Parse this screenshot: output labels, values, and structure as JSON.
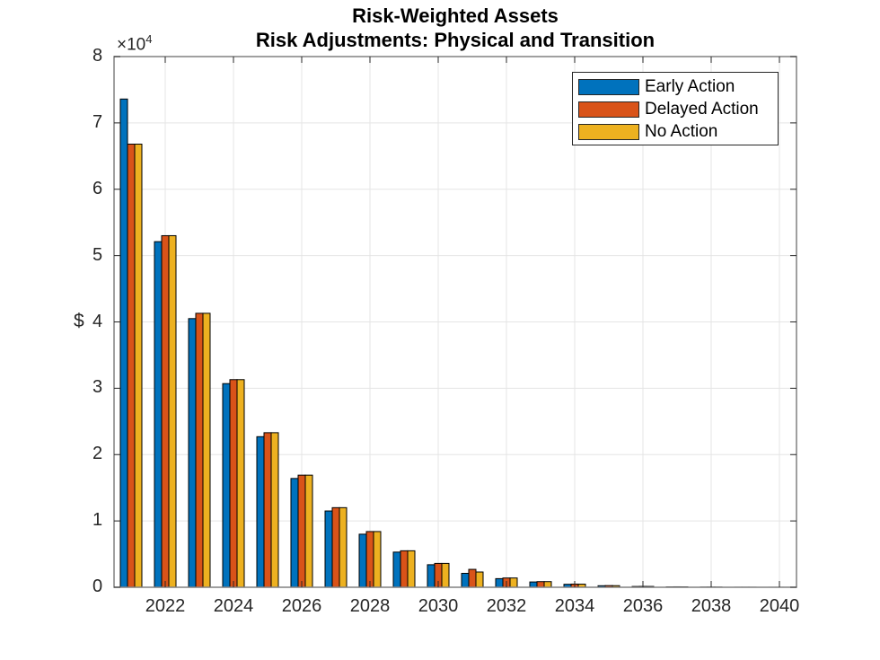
{
  "title_line1": "Risk-Weighted Assets",
  "title_line2": "Risk Adjustments: Physical and Transition",
  "y_exponent_prefix": "×10",
  "y_exponent_power": "4",
  "y_axis_label": "$",
  "colors": {
    "early": "#0072BD",
    "delayed": "#D95319",
    "none": "#EDB120",
    "grid": "#e5e5e5",
    "axis": "#262626",
    "bar_edge": "#000000"
  },
  "legend": [
    {
      "label": "Early Action",
      "color": "#0072BD"
    },
    {
      "label": "Delayed Action",
      "color": "#D95319"
    },
    {
      "label": "No Action",
      "color": "#EDB120"
    }
  ],
  "y_ticks": [
    "0",
    "1",
    "2",
    "3",
    "4",
    "5",
    "6",
    "7",
    "8"
  ],
  "x_ticks": [
    "2022",
    "2024",
    "2026",
    "2028",
    "2030",
    "2032",
    "2034",
    "2036",
    "2038",
    "2040"
  ],
  "chart_data": {
    "type": "bar",
    "title": "Risk-Weighted Assets\nRisk Adjustments: Physical and Transition",
    "xlabel": "",
    "ylabel": "$",
    "y_scale_note": "×10^4",
    "ylim": [
      0,
      80000
    ],
    "xlim": [
      2020.5,
      2040.5
    ],
    "grid": true,
    "legend_position": "northeast",
    "categories": [
      2021,
      2022,
      2023,
      2024,
      2025,
      2026,
      2027,
      2028,
      2029,
      2030,
      2031,
      2032,
      2033,
      2034,
      2035,
      2036,
      2037,
      2038,
      2039,
      2040
    ],
    "series": [
      {
        "name": "Early Action",
        "values": [
          73600,
          52100,
          40500,
          30700,
          22700,
          16400,
          11500,
          8000,
          5300,
          3400,
          2100,
          1300,
          800,
          450,
          230,
          120,
          60,
          30,
          10,
          5
        ]
      },
      {
        "name": "Delayed Action",
        "values": [
          66800,
          53000,
          41300,
          31300,
          23300,
          16900,
          12000,
          8400,
          5500,
          3600,
          2700,
          1400,
          850,
          480,
          250,
          130,
          70,
          35,
          12,
          6
        ]
      },
      {
        "name": "No Action",
        "values": [
          66800,
          53000,
          41300,
          31300,
          23300,
          16900,
          12000,
          8400,
          5500,
          3600,
          2300,
          1400,
          850,
          470,
          240,
          125,
          65,
          32,
          11,
          5
        ]
      }
    ]
  }
}
